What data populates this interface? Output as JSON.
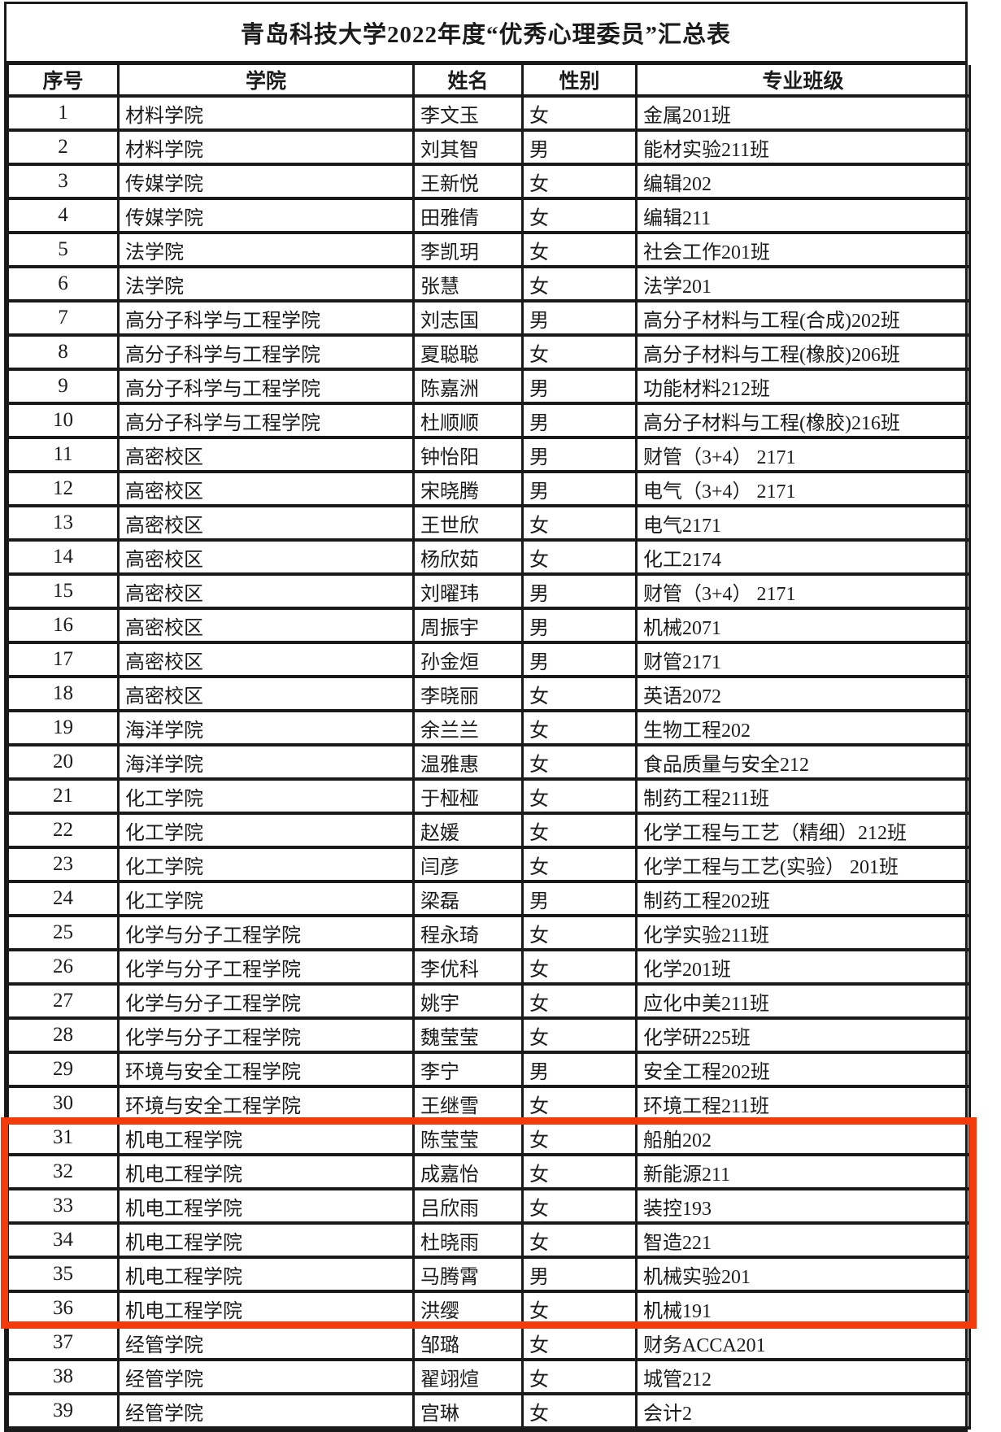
{
  "document": {
    "title": "青岛科技大学2022年度“优秀心理委员”汇总表"
  },
  "table": {
    "headers": [
      "序号",
      "学院",
      "姓名",
      "性别",
      "专业班级"
    ],
    "rows": [
      [
        "1",
        "材料学院",
        "李文玉",
        "女",
        "金属201班"
      ],
      [
        "2",
        "材料学院",
        "刘其智",
        "男",
        "能材实验211班"
      ],
      [
        "3",
        "传媒学院",
        "王新悦",
        "女",
        "编辑202"
      ],
      [
        "4",
        "传媒学院",
        "田雅倩",
        "女",
        "编辑211"
      ],
      [
        "5",
        "法学院",
        "李凯玥",
        "女",
        "社会工作201班"
      ],
      [
        "6",
        "法学院",
        "张慧",
        "女",
        "法学201"
      ],
      [
        "7",
        "高分子科学与工程学院",
        "刘志国",
        "男",
        "高分子材料与工程(合成)202班"
      ],
      [
        "8",
        "高分子科学与工程学院",
        "夏聪聪",
        "女",
        "高分子材料与工程(橡胶)206班"
      ],
      [
        "9",
        "高分子科学与工程学院",
        "陈嘉洲",
        "男",
        "功能材料212班"
      ],
      [
        "10",
        "高分子科学与工程学院",
        "杜顺顺",
        "男",
        "高分子材料与工程(橡胶)216班"
      ],
      [
        "11",
        "高密校区",
        "钟怡阳",
        "男",
        "财管（3+4） 2171"
      ],
      [
        "12",
        "高密校区",
        "宋晓腾",
        "男",
        "电气（3+4） 2171"
      ],
      [
        "13",
        "高密校区",
        "王世欣",
        "女",
        "电气2171"
      ],
      [
        "14",
        "高密校区",
        "杨欣茹",
        "女",
        "化工2174"
      ],
      [
        "15",
        "高密校区",
        "刘曜玮",
        "男",
        "财管（3+4） 2171"
      ],
      [
        "16",
        "高密校区",
        "周振宇",
        "男",
        "机械2071"
      ],
      [
        "17",
        "高密校区",
        "孙金烜",
        "男",
        "财管2171"
      ],
      [
        "18",
        "高密校区",
        "李晓丽",
        "女",
        "英语2072"
      ],
      [
        "19",
        "海洋学院",
        "余兰兰",
        "女",
        "生物工程202"
      ],
      [
        "20",
        "海洋学院",
        "温雅惠",
        "女",
        "食品质量与安全212"
      ],
      [
        "21",
        "化工学院",
        "于桠桠",
        "女",
        "制药工程211班"
      ],
      [
        "22",
        "化工学院",
        "赵媛",
        "女",
        "化学工程与工艺（精细）212班"
      ],
      [
        "23",
        "化工学院",
        "闫彦",
        "女",
        "化学工程与工艺(实验） 201班"
      ],
      [
        "24",
        "化工学院",
        "梁磊",
        "男",
        "制药工程202班"
      ],
      [
        "25",
        "化学与分子工程学院",
        "程永琦",
        "女",
        "化学实验211班"
      ],
      [
        "26",
        "化学与分子工程学院",
        "李优科",
        "女",
        "化学201班"
      ],
      [
        "27",
        "化学与分子工程学院",
        "姚宇",
        "女",
        "应化中美211班"
      ],
      [
        "28",
        "化学与分子工程学院",
        "魏莹莹",
        "女",
        "化学研225班"
      ],
      [
        "29",
        "环境与安全工程学院",
        "李宁",
        "男",
        "安全工程202班"
      ],
      [
        "30",
        "环境与安全工程学院",
        "王继雪",
        "女",
        "环境工程211班"
      ],
      [
        "31",
        "机电工程学院",
        "陈莹莹",
        "女",
        "船舶202"
      ],
      [
        "32",
        "机电工程学院",
        "成嘉怡",
        "女",
        "新能源211"
      ],
      [
        "33",
        "机电工程学院",
        "吕欣雨",
        "女",
        "装控193"
      ],
      [
        "34",
        "机电工程学院",
        "杜晓雨",
        "女",
        "智造221"
      ],
      [
        "35",
        "机电工程学院",
        "马腾霄",
        "男",
        "机械实验201"
      ],
      [
        "36",
        "机电工程学院",
        "洪缨",
        "女",
        "机械191"
      ],
      [
        "37",
        "经管学院",
        "邹璐",
        "女",
        "财务ACCA201"
      ],
      [
        "38",
        "经管学院",
        "翟翊煊",
        "女",
        "城管212"
      ],
      [
        "39",
        "经管学院",
        "宫琳",
        "女",
        "会计2"
      ]
    ]
  },
  "highlight": {
    "highlighted_rows": "31-36",
    "color": "#f43b0c"
  }
}
